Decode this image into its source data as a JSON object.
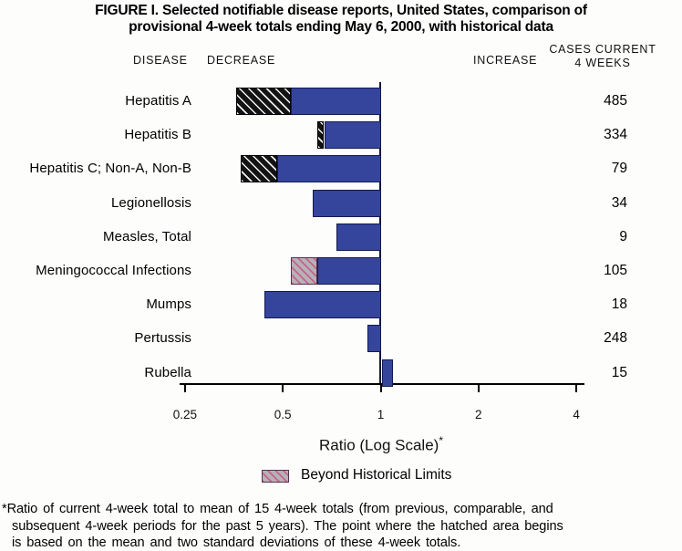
{
  "title": {
    "line1": "FIGURE I. Selected notifiable disease reports, United States, comparison of",
    "line2": "provisional 4-week totals ending May 6, 2000, with historical data"
  },
  "headers": {
    "disease": "DISEASE",
    "decrease": "DECREASE",
    "increase": "INCREASE",
    "cases_line1": "CASES CURRENT",
    "cases_line2": "4 WEEKS"
  },
  "chart_data": {
    "type": "bar",
    "orientation": "horizontal",
    "scale": "log",
    "baseline": 1,
    "axis": {
      "ticks": [
        0.25,
        0.5,
        1,
        2,
        4
      ],
      "tick_labels": [
        "0.25",
        "0.5",
        "1",
        "2",
        "4"
      ],
      "xlim": [
        0.25,
        4
      ],
      "xlabel": "Ratio (Log Scale)",
      "xlabel_note_marker": "*"
    },
    "rows": [
      {
        "label": "Hepatitis A",
        "cases": "485",
        "ratio": 0.36,
        "beyond_limit_to": 0.53,
        "hatch": "black"
      },
      {
        "label": "Hepatitis B",
        "cases": "334",
        "ratio": 0.64,
        "beyond_limit_to": 0.67,
        "hatch": "black"
      },
      {
        "label": "Hepatitis C; Non-A, Non-B",
        "cases": "79",
        "ratio": 0.37,
        "beyond_limit_to": 0.48,
        "hatch": "black"
      },
      {
        "label": "Legionellosis",
        "cases": "34",
        "ratio": 0.62,
        "beyond_limit_to": null,
        "hatch": null
      },
      {
        "label": "Measles, Total",
        "cases": "9",
        "ratio": 0.73,
        "beyond_limit_to": null,
        "hatch": null
      },
      {
        "label": "Meningococcal Infections",
        "cases": "105",
        "ratio": 0.53,
        "beyond_limit_to": 0.64,
        "hatch": "pink"
      },
      {
        "label": "Mumps",
        "cases": "18",
        "ratio": 0.44,
        "beyond_limit_to": null,
        "hatch": null
      },
      {
        "label": "Pertussis",
        "cases": "248",
        "ratio": 0.91,
        "beyond_limit_to": null,
        "hatch": null
      },
      {
        "label": "Rubella",
        "cases": "15",
        "ratio": 1.09,
        "beyond_limit_to": null,
        "hatch": null
      }
    ]
  },
  "legend": {
    "label": "Beyond Historical Limits"
  },
  "footnote": {
    "line1": "*Ratio of current 4-week total to mean of 15 4-week totals (from previous, comparable, and",
    "line2": "subsequent 4-week periods for the past 5 years). The point where the hatched area begins",
    "line3": "is based on the mean and two standard deviations of these 4-week totals."
  },
  "colors": {
    "bar_blue": "#35459c",
    "bar_border": "#141a4f",
    "hatch_black_bg": "#131313",
    "hatch_pink_bg": "#b6b2b6",
    "hatch_pink_line": "#c4638f",
    "axis_vline": "#10163f",
    "axis": "#000000"
  }
}
